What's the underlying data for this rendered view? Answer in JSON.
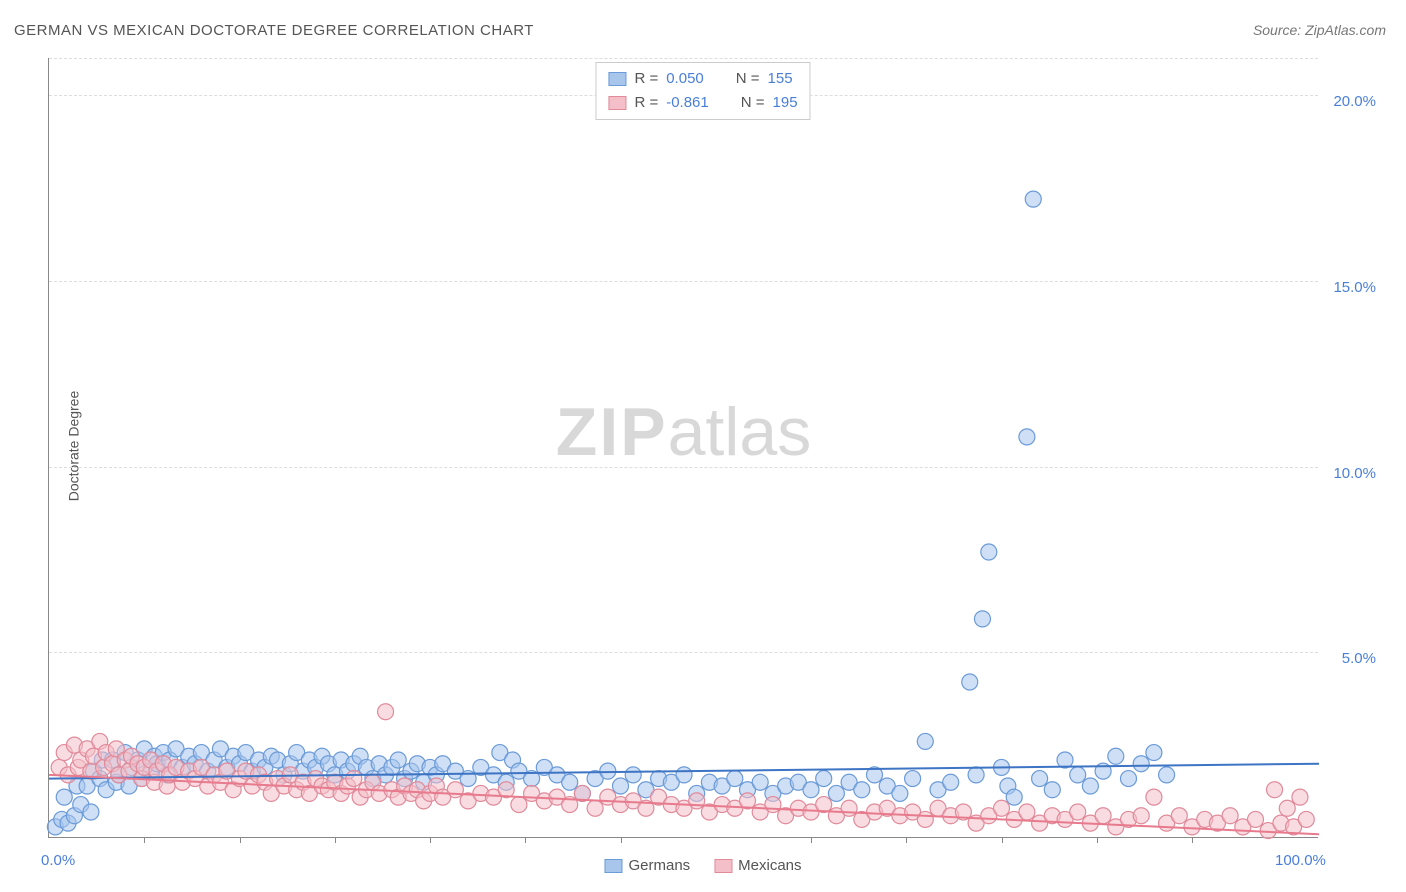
{
  "title": "GERMAN VS MEXICAN DOCTORATE DEGREE CORRELATION CHART",
  "source": "Source: ZipAtlas.com",
  "ylabel": "Doctorate Degree",
  "watermark": {
    "bold": "ZIP",
    "rest": "atlas"
  },
  "chart": {
    "type": "scatter",
    "background_color": "#ffffff",
    "grid_color": "#dddddd",
    "axis_color": "#888888",
    "xlim": [
      0,
      100
    ],
    "ylim": [
      0,
      21
    ],
    "xtick_labels": [
      "0.0%",
      "100.0%"
    ],
    "xtick_positions": [
      0,
      100
    ],
    "x_minor_ticks": [
      7.5,
      15,
      22.5,
      30,
      37.5,
      45,
      60,
      67.5,
      75,
      82.5,
      90
    ],
    "ytick_labels": [
      "5.0%",
      "10.0%",
      "15.0%",
      "20.0%"
    ],
    "ytick_positions": [
      5,
      10,
      15,
      20
    ],
    "ytick_color": "#4a7fd8",
    "label_fontsize": 14,
    "tick_fontsize": 15,
    "marker_radius": 8,
    "marker_opacity": 0.55,
    "marker_stroke_width": 1.2,
    "series": [
      {
        "name": "Germans",
        "fill_color": "#a8c5ec",
        "stroke_color": "#6b9bd8",
        "line_color": "#3e74c4",
        "trend": {
          "y_at_x0": 1.6,
          "y_at_x100": 2.0
        },
        "points": [
          [
            0.5,
            0.3
          ],
          [
            1,
            0.5
          ],
          [
            1.2,
            1.1
          ],
          [
            1.5,
            0.4
          ],
          [
            2,
            0.6
          ],
          [
            2.2,
            1.4
          ],
          [
            2.5,
            0.9
          ],
          [
            3,
            1.4
          ],
          [
            3.3,
            0.7
          ],
          [
            3.5,
            1.8
          ],
          [
            4,
            1.6
          ],
          [
            4.2,
            2.1
          ],
          [
            4.5,
            1.3
          ],
          [
            5,
            2.1
          ],
          [
            5.3,
            1.5
          ],
          [
            5.5,
            1.7
          ],
          [
            6,
            2.3
          ],
          [
            6.3,
            1.4
          ],
          [
            6.5,
            1.9
          ],
          [
            7,
            2.1
          ],
          [
            7.3,
            1.6
          ],
          [
            7.5,
            2.4
          ],
          [
            8,
            1.8
          ],
          [
            8.3,
            2.2
          ],
          [
            8.5,
            2.0
          ],
          [
            9,
            2.3
          ],
          [
            9.3,
            1.7
          ],
          [
            9.5,
            2.1
          ],
          [
            10,
            2.4
          ],
          [
            10.5,
            1.9
          ],
          [
            11,
            2.2
          ],
          [
            11.5,
            2.0
          ],
          [
            12,
            2.3
          ],
          [
            12.5,
            1.8
          ],
          [
            13,
            2.1
          ],
          [
            13.5,
            2.4
          ],
          [
            14,
            1.9
          ],
          [
            14.5,
            2.2
          ],
          [
            15,
            2.0
          ],
          [
            15.5,
            2.3
          ],
          [
            16,
            1.8
          ],
          [
            16.5,
            2.1
          ],
          [
            17,
            1.9
          ],
          [
            17.5,
            2.2
          ],
          [
            18,
            2.1
          ],
          [
            18.5,
            1.7
          ],
          [
            19,
            2.0
          ],
          [
            19.5,
            2.3
          ],
          [
            20,
            1.8
          ],
          [
            20.5,
            2.1
          ],
          [
            21,
            1.9
          ],
          [
            21.5,
            2.2
          ],
          [
            22,
            2.0
          ],
          [
            22.5,
            1.7
          ],
          [
            23,
            2.1
          ],
          [
            23.5,
            1.8
          ],
          [
            24,
            2.0
          ],
          [
            24.5,
            2.2
          ],
          [
            25,
            1.9
          ],
          [
            25.5,
            1.6
          ],
          [
            26,
            2.0
          ],
          [
            26.5,
            1.7
          ],
          [
            27,
            1.9
          ],
          [
            27.5,
            2.1
          ],
          [
            28,
            1.6
          ],
          [
            28.5,
            1.8
          ],
          [
            29,
            2.0
          ],
          [
            29.5,
            1.5
          ],
          [
            30,
            1.9
          ],
          [
            30.5,
            1.7
          ],
          [
            31,
            2.0
          ],
          [
            32,
            1.8
          ],
          [
            33,
            1.6
          ],
          [
            34,
            1.9
          ],
          [
            35,
            1.7
          ],
          [
            35.5,
            2.3
          ],
          [
            36,
            1.5
          ],
          [
            36.5,
            2.1
          ],
          [
            37,
            1.8
          ],
          [
            38,
            1.6
          ],
          [
            39,
            1.9
          ],
          [
            40,
            1.7
          ],
          [
            41,
            1.5
          ],
          [
            42,
            1.2
          ],
          [
            43,
            1.6
          ],
          [
            44,
            1.8
          ],
          [
            45,
            1.4
          ],
          [
            46,
            1.7
          ],
          [
            47,
            1.3
          ],
          [
            48,
            1.6
          ],
          [
            49,
            1.5
          ],
          [
            50,
            1.7
          ],
          [
            51,
            1.2
          ],
          [
            52,
            1.5
          ],
          [
            53,
            1.4
          ],
          [
            54,
            1.6
          ],
          [
            55,
            1.3
          ],
          [
            56,
            1.5
          ],
          [
            57,
            1.2
          ],
          [
            58,
            1.4
          ],
          [
            59,
            1.5
          ],
          [
            60,
            1.3
          ],
          [
            61,
            1.6
          ],
          [
            62,
            1.2
          ],
          [
            63,
            1.5
          ],
          [
            64,
            1.3
          ],
          [
            65,
            1.7
          ],
          [
            66,
            1.4
          ],
          [
            67,
            1.2
          ],
          [
            68,
            1.6
          ],
          [
            69,
            2.6
          ],
          [
            70,
            1.3
          ],
          [
            71,
            1.5
          ],
          [
            72.5,
            4.2
          ],
          [
            73,
            1.7
          ],
          [
            73.5,
            5.9
          ],
          [
            74,
            7.7
          ],
          [
            75,
            1.9
          ],
          [
            75.5,
            1.4
          ],
          [
            76,
            1.1
          ],
          [
            77,
            10.8
          ],
          [
            77.5,
            17.2
          ],
          [
            78,
            1.6
          ],
          [
            79,
            1.3
          ],
          [
            80,
            2.1
          ],
          [
            81,
            1.7
          ],
          [
            82,
            1.4
          ],
          [
            83,
            1.8
          ],
          [
            84,
            2.2
          ],
          [
            85,
            1.6
          ],
          [
            86,
            2.0
          ],
          [
            87,
            2.3
          ],
          [
            88,
            1.7
          ]
        ]
      },
      {
        "name": "Mexicans",
        "fill_color": "#f4bfc9",
        "stroke_color": "#e08a9a",
        "line_color": "#e87a8d",
        "trend": {
          "y_at_x0": 1.7,
          "y_at_x100": 0.1
        },
        "points": [
          [
            0.8,
            1.9
          ],
          [
            1.2,
            2.3
          ],
          [
            1.5,
            1.7
          ],
          [
            2,
            2.5
          ],
          [
            2.3,
            1.9
          ],
          [
            2.5,
            2.1
          ],
          [
            3,
            2.4
          ],
          [
            3.3,
            1.8
          ],
          [
            3.5,
            2.2
          ],
          [
            4,
            2.6
          ],
          [
            4.3,
            1.9
          ],
          [
            4.5,
            2.3
          ],
          [
            5,
            2.0
          ],
          [
            5.3,
            2.4
          ],
          [
            5.5,
            1.7
          ],
          [
            6,
            2.1
          ],
          [
            6.3,
            1.8
          ],
          [
            6.5,
            2.2
          ],
          [
            7,
            2.0
          ],
          [
            7.3,
            1.6
          ],
          [
            7.5,
            1.9
          ],
          [
            8,
            2.1
          ],
          [
            8.3,
            1.5
          ],
          [
            8.5,
            1.8
          ],
          [
            9,
            2.0
          ],
          [
            9.3,
            1.4
          ],
          [
            9.5,
            1.7
          ],
          [
            10,
            1.9
          ],
          [
            10.5,
            1.5
          ],
          [
            11,
            1.8
          ],
          [
            11.5,
            1.6
          ],
          [
            12,
            1.9
          ],
          [
            12.5,
            1.4
          ],
          [
            13,
            1.7
          ],
          [
            13.5,
            1.5
          ],
          [
            14,
            1.8
          ],
          [
            14.5,
            1.3
          ],
          [
            15,
            1.6
          ],
          [
            15.5,
            1.8
          ],
          [
            16,
            1.4
          ],
          [
            16.5,
            1.7
          ],
          [
            17,
            1.5
          ],
          [
            17.5,
            1.2
          ],
          [
            18,
            1.6
          ],
          [
            18.5,
            1.4
          ],
          [
            19,
            1.7
          ],
          [
            19.5,
            1.3
          ],
          [
            20,
            1.5
          ],
          [
            20.5,
            1.2
          ],
          [
            21,
            1.6
          ],
          [
            21.5,
            1.4
          ],
          [
            22,
            1.3
          ],
          [
            22.5,
            1.5
          ],
          [
            23,
            1.2
          ],
          [
            23.5,
            1.4
          ],
          [
            24,
            1.6
          ],
          [
            24.5,
            1.1
          ],
          [
            25,
            1.3
          ],
          [
            25.5,
            1.5
          ],
          [
            26,
            1.2
          ],
          [
            26.5,
            3.4
          ],
          [
            27,
            1.3
          ],
          [
            27.5,
            1.1
          ],
          [
            28,
            1.4
          ],
          [
            28.5,
            1.2
          ],
          [
            29,
            1.3
          ],
          [
            29.5,
            1.0
          ],
          [
            30,
            1.2
          ],
          [
            30.5,
            1.4
          ],
          [
            31,
            1.1
          ],
          [
            32,
            1.3
          ],
          [
            33,
            1.0
          ],
          [
            34,
            1.2
          ],
          [
            35,
            1.1
          ],
          [
            36,
            1.3
          ],
          [
            37,
            0.9
          ],
          [
            38,
            1.2
          ],
          [
            39,
            1.0
          ],
          [
            40,
            1.1
          ],
          [
            41,
            0.9
          ],
          [
            42,
            1.2
          ],
          [
            43,
            0.8
          ],
          [
            44,
            1.1
          ],
          [
            45,
            0.9
          ],
          [
            46,
            1.0
          ],
          [
            47,
            0.8
          ],
          [
            48,
            1.1
          ],
          [
            49,
            0.9
          ],
          [
            50,
            0.8
          ],
          [
            51,
            1.0
          ],
          [
            52,
            0.7
          ],
          [
            53,
            0.9
          ],
          [
            54,
            0.8
          ],
          [
            55,
            1.0
          ],
          [
            56,
            0.7
          ],
          [
            57,
            0.9
          ],
          [
            58,
            0.6
          ],
          [
            59,
            0.8
          ],
          [
            60,
            0.7
          ],
          [
            61,
            0.9
          ],
          [
            62,
            0.6
          ],
          [
            63,
            0.8
          ],
          [
            64,
            0.5
          ],
          [
            65,
            0.7
          ],
          [
            66,
            0.8
          ],
          [
            67,
            0.6
          ],
          [
            68,
            0.7
          ],
          [
            69,
            0.5
          ],
          [
            70,
            0.8
          ],
          [
            71,
            0.6
          ],
          [
            72,
            0.7
          ],
          [
            73,
            0.4
          ],
          [
            74,
            0.6
          ],
          [
            75,
            0.8
          ],
          [
            76,
            0.5
          ],
          [
            77,
            0.7
          ],
          [
            78,
            0.4
          ],
          [
            79,
            0.6
          ],
          [
            80,
            0.5
          ],
          [
            81,
            0.7
          ],
          [
            82,
            0.4
          ],
          [
            83,
            0.6
          ],
          [
            84,
            0.3
          ],
          [
            85,
            0.5
          ],
          [
            86,
            0.6
          ],
          [
            87,
            1.1
          ],
          [
            88,
            0.4
          ],
          [
            89,
            0.6
          ],
          [
            90,
            0.3
          ],
          [
            91,
            0.5
          ],
          [
            92,
            0.4
          ],
          [
            93,
            0.6
          ],
          [
            94,
            0.3
          ],
          [
            95,
            0.5
          ],
          [
            96,
            0.2
          ],
          [
            96.5,
            1.3
          ],
          [
            97,
            0.4
          ],
          [
            97.5,
            0.8
          ],
          [
            98,
            0.3
          ],
          [
            98.5,
            1.1
          ],
          [
            99,
            0.5
          ]
        ]
      }
    ],
    "legend_top": [
      {
        "r_label": "R = ",
        "r_value": "0.050",
        "n_label": "N = ",
        "n_value": "155",
        "swatch_fill": "#a8c5ec",
        "swatch_border": "#6b9bd8"
      },
      {
        "r_label": "R = ",
        "r_value": "-0.861",
        "n_label": "N = ",
        "n_value": "195",
        "swatch_fill": "#f4bfc9",
        "swatch_border": "#e08a9a"
      }
    ],
    "legend_bottom": [
      {
        "label": "Germans",
        "swatch_fill": "#a8c5ec",
        "swatch_border": "#6b9bd8"
      },
      {
        "label": "Mexicans",
        "swatch_fill": "#f4bfc9",
        "swatch_border": "#e08a9a"
      }
    ]
  }
}
